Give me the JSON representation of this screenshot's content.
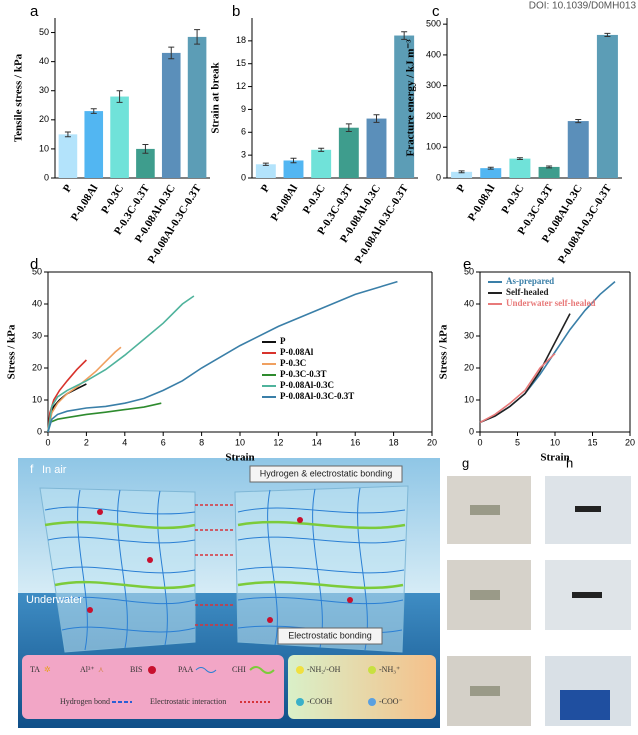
{
  "doi": "DOI: 10.1039/D0MH013",
  "chart_data": [
    {
      "type": "bar",
      "label": "a",
      "ylabel": "Tensile stress / kPa",
      "categories": [
        "P",
        "P-0.08Al",
        "P-0.3C",
        "P-0.3C-0.3T",
        "P-0.08Al-0.3C",
        "P-0.08Al-0.3C-0.3T"
      ],
      "values": [
        15,
        23,
        28,
        10,
        43,
        48.5
      ],
      "errors": [
        0.8,
        0.8,
        2,
        1.5,
        2,
        2.5
      ],
      "colors": [
        "#b3e3fb",
        "#52b6f2",
        "#70e2d9",
        "#3e9d8d",
        "#5b8fba",
        "#5c9db6"
      ],
      "ylim": [
        0,
        55
      ],
      "yticks": [
        0,
        10,
        20,
        30,
        40,
        50
      ]
    },
    {
      "type": "bar",
      "label": "b",
      "ylabel": "Strain at break",
      "categories": [
        "P",
        "P-0.08Al",
        "P-0.3C",
        "P-0.3C-0.3T",
        "P-0.08Al-0.3C",
        "P-0.08Al-0.3C-0.3T"
      ],
      "values": [
        1.8,
        2.3,
        3.7,
        6.6,
        7.8,
        18.7
      ],
      "errors": [
        0.15,
        0.3,
        0.2,
        0.5,
        0.5,
        0.5
      ],
      "colors": [
        "#b3e3fb",
        "#52b6f2",
        "#70e2d9",
        "#3e9d8d",
        "#5b8fba",
        "#5c9db6"
      ],
      "ylim": [
        0,
        21
      ],
      "yticks": [
        0,
        3,
        6,
        9,
        12,
        15,
        18
      ]
    },
    {
      "type": "bar",
      "label": "c",
      "ylabel": "Fracture energy / kJ m⁻³",
      "categories": [
        "P",
        "P-0.08Al",
        "P-0.3C",
        "P-0.3C-0.3T",
        "P-0.08Al-0.3C",
        "P-0.08Al-0.3C-0.3T"
      ],
      "values": [
        20,
        32,
        63,
        36,
        185,
        465
      ],
      "errors": [
        3,
        3,
        3,
        3,
        5,
        5
      ],
      "colors": [
        "#b3e3fb",
        "#52b6f2",
        "#70e2d9",
        "#3e9d8d",
        "#5b8fba",
        "#5c9db6"
      ],
      "ylim": [
        0,
        520
      ],
      "yticks": [
        0,
        100,
        200,
        300,
        400,
        500
      ]
    },
    {
      "type": "line",
      "label": "d",
      "xlabel": "Strain",
      "ylabel": "Stress / kPa",
      "xlim": [
        0,
        20
      ],
      "xticks": [
        0,
        2,
        4,
        6,
        8,
        10,
        12,
        14,
        16,
        18,
        20
      ],
      "ylim": [
        0,
        50
      ],
      "yticks": [
        0,
        10,
        20,
        30,
        40,
        50
      ],
      "series": [
        {
          "name": "P",
          "color": "#111111",
          "x": [
            0,
            0.1,
            0.3,
            0.6,
            1.0,
            1.5,
            2.0
          ],
          "values": [
            0,
            5,
            8,
            10,
            12,
            13.5,
            15
          ]
        },
        {
          "name": "P-0.08Al",
          "color": "#d8332c",
          "x": [
            0,
            0.1,
            0.3,
            0.6,
            1.0,
            1.5,
            2.0
          ],
          "values": [
            0,
            6,
            10,
            13,
            16,
            19.5,
            22.5
          ]
        },
        {
          "name": "P-0.3C",
          "color": "#f0a060",
          "x": [
            0,
            0.2,
            0.5,
            1,
            1.5,
            2,
            2.5,
            3,
            3.5,
            3.8
          ],
          "values": [
            0,
            6,
            9,
            12,
            14,
            16.5,
            19,
            22,
            25,
            26.5
          ]
        },
        {
          "name": "P-0.3C-0.3T",
          "color": "#2e8b2e",
          "x": [
            0,
            0.1,
            0.5,
            1,
            2,
            3,
            4,
            5,
            5.9
          ],
          "values": [
            0,
            3,
            4,
            4.5,
            5.5,
            6.2,
            7,
            7.8,
            9
          ]
        },
        {
          "name": "P-0.08Al-0.3C",
          "color": "#4fb39c",
          "x": [
            0,
            0.2,
            0.5,
            1,
            2,
            3,
            4,
            5,
            6,
            7,
            7.6
          ],
          "values": [
            0,
            8,
            11,
            13,
            16,
            19.5,
            24,
            29,
            34,
            40,
            42.5
          ]
        },
        {
          "name": "P-0.08Al-0.3C-0.3T",
          "color": "#3a7fa8",
          "x": [
            0,
            0.2,
            0.5,
            1,
            2,
            3,
            4,
            5,
            6,
            7,
            8,
            10,
            12,
            14,
            16,
            18.2
          ],
          "values": [
            0,
            4,
            5.5,
            6.5,
            7.5,
            8,
            9,
            10.5,
            13,
            16,
            20,
            27,
            33,
            38,
            43,
            47
          ]
        }
      ]
    },
    {
      "type": "line",
      "label": "e",
      "xlabel": "Strain",
      "ylabel": "Stress / kPa",
      "xlim": [
        0,
        20
      ],
      "xticks": [
        0,
        5,
        10,
        15,
        20
      ],
      "ylim": [
        0,
        50
      ],
      "yticks": [
        0,
        10,
        20,
        30,
        40,
        50
      ],
      "series": [
        {
          "name": "As-prepared",
          "color": "#3a7fa8",
          "x": [
            0,
            1,
            2,
            4,
            6,
            8,
            10,
            12,
            14,
            16,
            18
          ],
          "values": [
            3,
            4,
            5,
            8,
            12,
            18,
            25,
            32,
            38,
            43,
            47
          ]
        },
        {
          "name": "Self-healed",
          "color": "#222222",
          "x": [
            0,
            2,
            4,
            6,
            8,
            10,
            12
          ],
          "values": [
            3,
            5,
            8,
            12,
            19,
            28,
            37
          ]
        },
        {
          "name": "Underwater self-healed",
          "color": "#e87a7a",
          "x": [
            0,
            2,
            4,
            6,
            8,
            10
          ],
          "values": [
            3,
            5.5,
            9,
            13,
            20,
            24.5
          ]
        }
      ]
    }
  ],
  "diagram": {
    "label": "f",
    "in_air": "In air",
    "underwater": "Underwater",
    "top_callout": "Hydrogen & electrostatic bonding",
    "bottom_callout": "Electrostatic bonding",
    "legend": [
      "TA",
      "Al³⁺",
      "BIS",
      "PAA",
      "CHI",
      "Hydrogen bond",
      "Electrostatic interaction",
      "-NH₂/-OH",
      "-NH₃⁺",
      "-COOH",
      "-COO⁻"
    ]
  },
  "photos": {
    "g": "g",
    "h": "h"
  }
}
